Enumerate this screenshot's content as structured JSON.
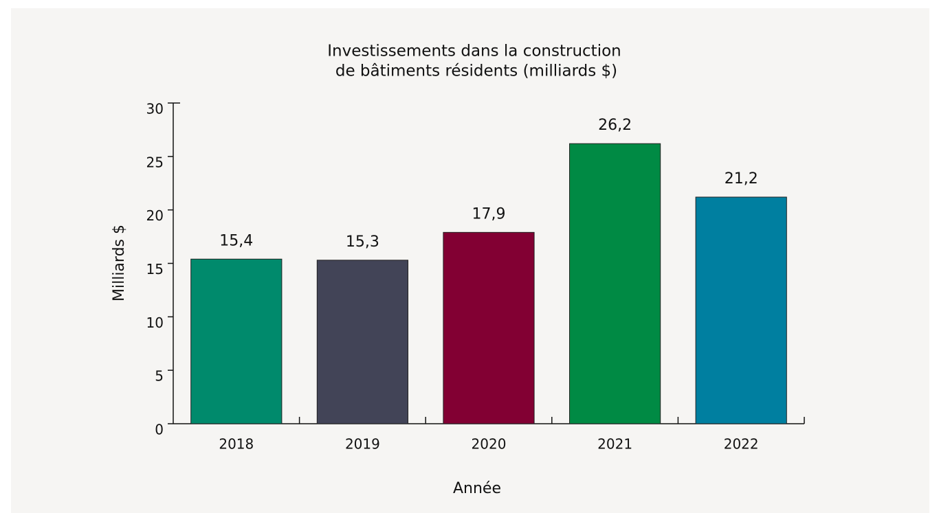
{
  "chart_data": {
    "type": "bar",
    "title": [
      "Investissements dans la construction",
      "de bâtiments résidents (milliards $)"
    ],
    "x_label": "Année",
    "y_label": "Milliards $",
    "categories": [
      "2018",
      "2019",
      "2020",
      "2021",
      "2022"
    ],
    "values": [
      15.4,
      15.3,
      17.9,
      26.2,
      21.2
    ],
    "value_labels": [
      "15,4",
      "15,3",
      "17,9",
      "26,2",
      "21,2"
    ],
    "colors": [
      "#008a6c",
      "#424457",
      "#820033",
      "#008a44",
      "#007fa0"
    ],
    "ylim": [
      0,
      30
    ],
    "yticks": [
      0,
      5,
      10,
      15,
      20,
      25,
      30
    ],
    "grid": false
  }
}
